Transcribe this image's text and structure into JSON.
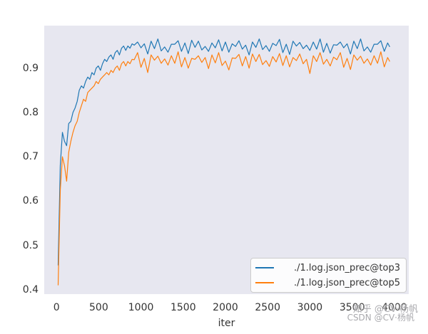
{
  "watermarks": {
    "line1": "知乎 @CV·杨帆",
    "line2": "CSDN @CV·杨帆"
  },
  "colors": {
    "figure_bg": "#ffffff",
    "axes_bg": "#e7e7f0",
    "tick_text": "#333333",
    "legend_bg": "#ffffff",
    "legend_border": "#cccccc",
    "watermark_gray": "#9b9ba0"
  },
  "chart_data": {
    "type": "line",
    "title": "",
    "xlabel": "iter",
    "ylabel": "",
    "grid": false,
    "legend_position": "lower right",
    "xlim": [
      -145,
      4170
    ],
    "ylim": [
      0.39,
      0.996
    ],
    "x_ticks": [
      0,
      500,
      1000,
      1500,
      2000,
      2500,
      3000,
      3500,
      4000
    ],
    "y_ticks": [
      0.4,
      0.5,
      0.6,
      0.7,
      0.8,
      0.9
    ],
    "x": [
      20,
      45,
      70,
      95,
      120,
      145,
      170,
      195,
      220,
      245,
      270,
      295,
      320,
      345,
      370,
      395,
      420,
      445,
      470,
      495,
      520,
      545,
      570,
      595,
      620,
      645,
      670,
      695,
      720,
      745,
      770,
      795,
      820,
      845,
      870,
      895,
      920,
      960,
      1000,
      1040,
      1080,
      1120,
      1160,
      1200,
      1240,
      1280,
      1320,
      1360,
      1400,
      1440,
      1480,
      1520,
      1560,
      1600,
      1640,
      1680,
      1720,
      1760,
      1800,
      1840,
      1880,
      1920,
      1960,
      2000,
      2040,
      2080,
      2120,
      2160,
      2200,
      2240,
      2280,
      2320,
      2360,
      2400,
      2440,
      2480,
      2520,
      2560,
      2600,
      2640,
      2680,
      2720,
      2760,
      2800,
      2840,
      2880,
      2920,
      2960,
      3000,
      3040,
      3080,
      3120,
      3160,
      3200,
      3240,
      3280,
      3320,
      3360,
      3400,
      3440,
      3480,
      3520,
      3560,
      3600,
      3640,
      3680,
      3720,
      3760,
      3800,
      3840,
      3880,
      3920,
      3945
    ],
    "series": [
      {
        "name": "./1.log.json_prec@top3",
        "color": "#1f77b4",
        "y": [
          0.455,
          0.68,
          0.755,
          0.735,
          0.725,
          0.775,
          0.78,
          0.8,
          0.81,
          0.825,
          0.85,
          0.86,
          0.855,
          0.87,
          0.88,
          0.875,
          0.89,
          0.885,
          0.9,
          0.905,
          0.895,
          0.91,
          0.92,
          0.915,
          0.925,
          0.93,
          0.92,
          0.935,
          0.94,
          0.93,
          0.945,
          0.95,
          0.94,
          0.95,
          0.945,
          0.955,
          0.952,
          0.959,
          0.946,
          0.955,
          0.932,
          0.961,
          0.944,
          0.966,
          0.939,
          0.948,
          0.936,
          0.954,
          0.954,
          0.962,
          0.938,
          0.957,
          0.933,
          0.963,
          0.947,
          0.961,
          0.941,
          0.949,
          0.938,
          0.957,
          0.946,
          0.964,
          0.939,
          0.959,
          0.936,
          0.955,
          0.949,
          0.962,
          0.943,
          0.952,
          0.93,
          0.959,
          0.947,
          0.966,
          0.942,
          0.951,
          0.938,
          0.956,
          0.951,
          0.965,
          0.935,
          0.954,
          0.931,
          0.961,
          0.95,
          0.958,
          0.944,
          0.952,
          0.94,
          0.959,
          0.943,
          0.966,
          0.936,
          0.956,
          0.934,
          0.953,
          0.952,
          0.959,
          0.946,
          0.955,
          0.932,
          0.961,
          0.944,
          0.966,
          0.939,
          0.948,
          0.936,
          0.954,
          0.954,
          0.962,
          0.938,
          0.957,
          0.948
        ]
      },
      {
        "name": "./1.log.json_prec@top5",
        "color": "#ff7f0e",
        "y": [
          0.41,
          0.625,
          0.7,
          0.68,
          0.645,
          0.71,
          0.735,
          0.755,
          0.77,
          0.78,
          0.8,
          0.815,
          0.83,
          0.825,
          0.845,
          0.85,
          0.855,
          0.86,
          0.87,
          0.865,
          0.875,
          0.88,
          0.885,
          0.89,
          0.885,
          0.895,
          0.89,
          0.9,
          0.905,
          0.895,
          0.91,
          0.915,
          0.905,
          0.915,
          0.91,
          0.92,
          0.919,
          0.935,
          0.902,
          0.922,
          0.89,
          0.93,
          0.918,
          0.927,
          0.911,
          0.921,
          0.907,
          0.928,
          0.911,
          0.937,
          0.903,
          0.924,
          0.9,
          0.922,
          0.92,
          0.928,
          0.913,
          0.924,
          0.899,
          0.93,
          0.912,
          0.935,
          0.906,
          0.916,
          0.896,
          0.923,
          0.922,
          0.931,
          0.905,
          0.926,
          0.9,
          0.932,
          0.915,
          0.931,
          0.908,
          0.917,
          0.904,
          0.926,
          0.914,
          0.933,
          0.906,
          0.928,
          0.903,
          0.924,
          0.917,
          0.932,
          0.91,
          0.92,
          0.888,
          0.928,
          0.915,
          0.935,
          0.909,
          0.92,
          0.905,
          0.925,
          0.919,
          0.935,
          0.902,
          0.922,
          0.897,
          0.93,
          0.918,
          0.927,
          0.911,
          0.921,
          0.907,
          0.928,
          0.911,
          0.937,
          0.903,
          0.924,
          0.915
        ]
      }
    ]
  }
}
